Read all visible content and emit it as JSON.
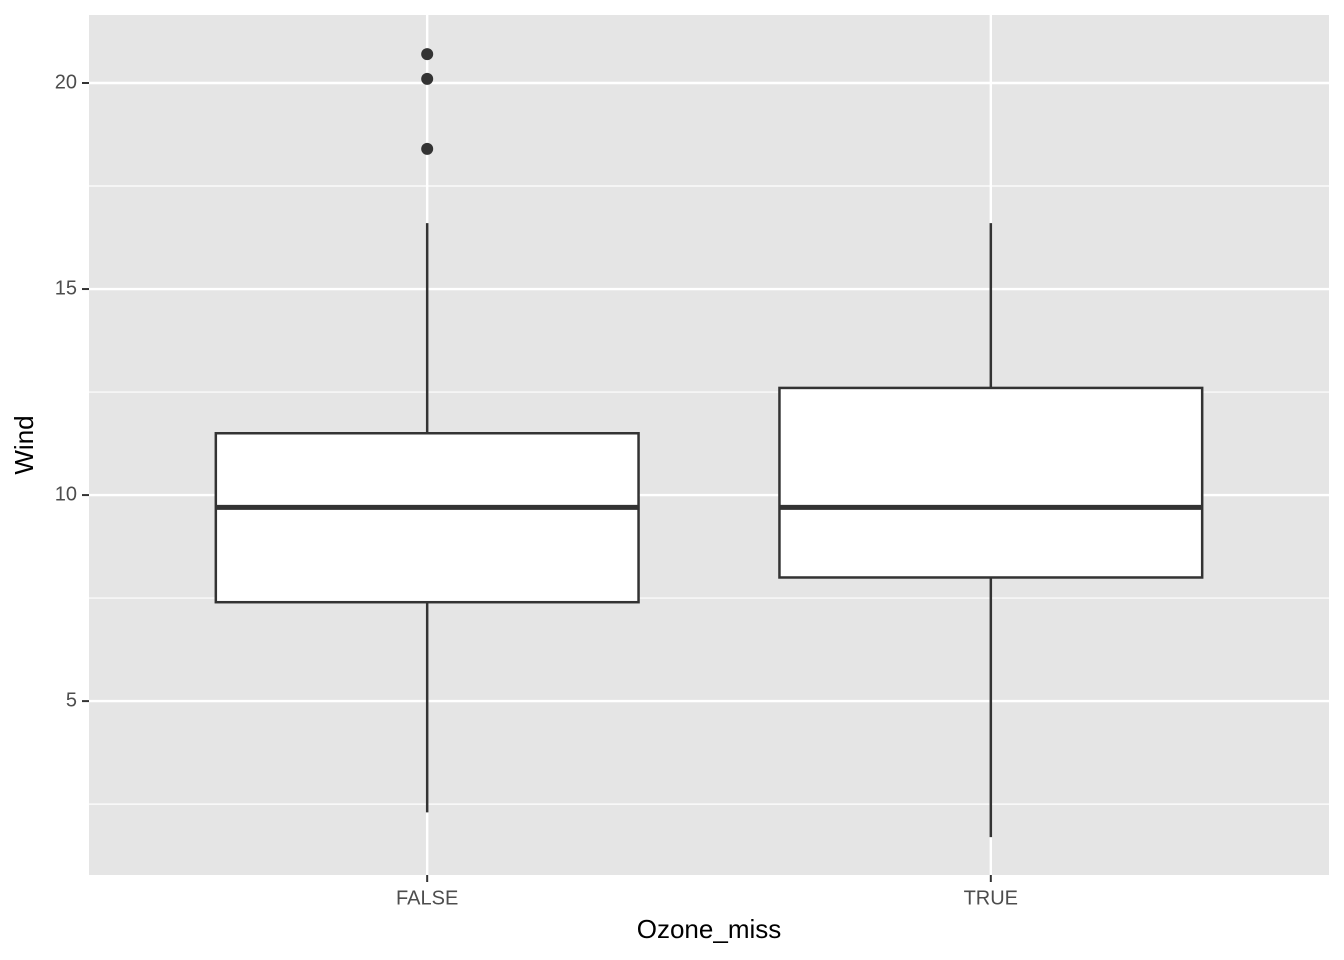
{
  "chart_data": {
    "type": "box",
    "x_label": "Ozone_miss",
    "y_label": "Wind",
    "categories": [
      "FALSE",
      "TRUE"
    ],
    "whisker_low": [
      2.3,
      1.7
    ],
    "q1": [
      7.4,
      8.0
    ],
    "median": [
      9.7,
      9.7
    ],
    "q3": [
      11.5,
      12.6
    ],
    "whisker_high": [
      16.6,
      16.6
    ],
    "outliers": [
      [
        20.7,
        20.1,
        18.4
      ],
      []
    ],
    "ylim": [
      0.78,
      21.65
    ],
    "yticks": [
      5,
      10,
      15,
      20
    ],
    "grid": true,
    "color": "#ffffff",
    "line_color": "#333333"
  }
}
